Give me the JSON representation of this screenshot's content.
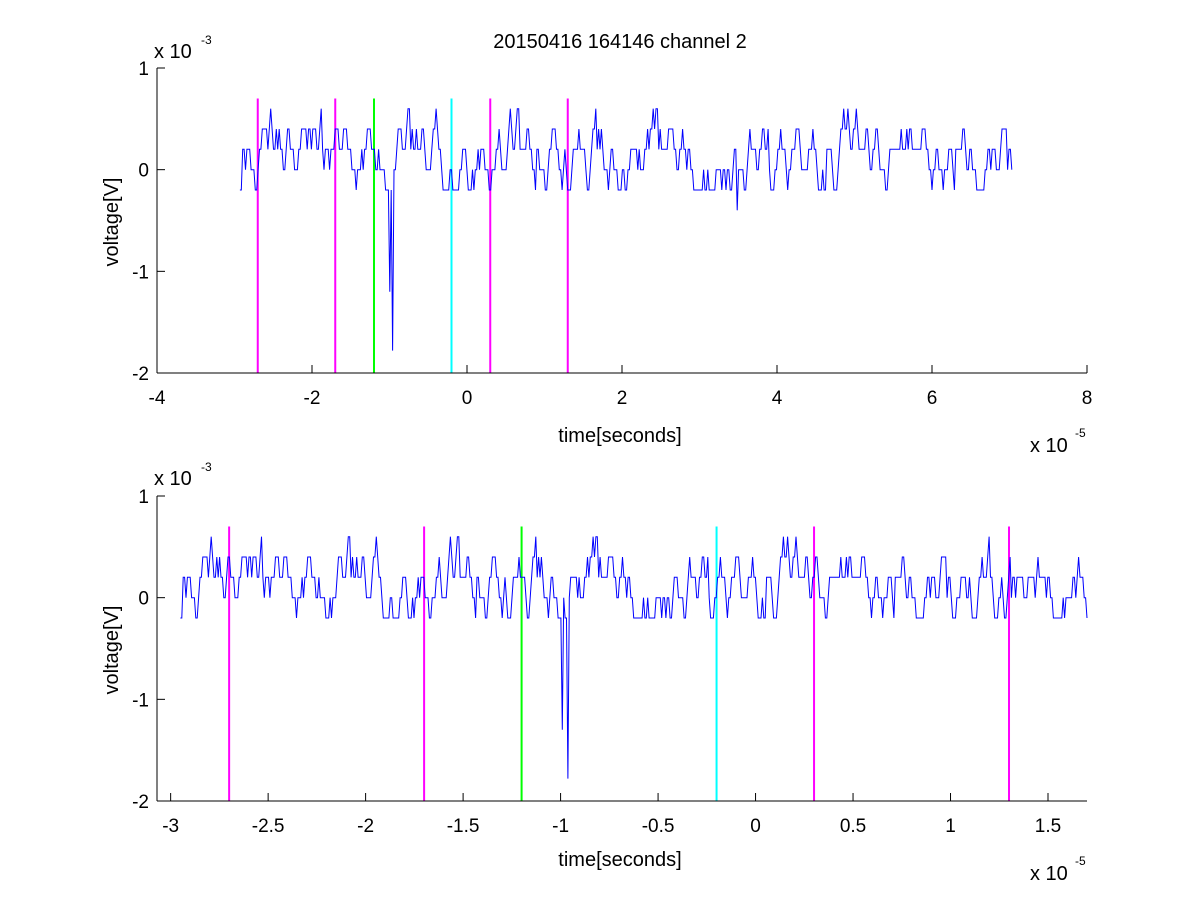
{
  "figure": {
    "title": "20150416 164146 channel 2"
  },
  "chart_data": [
    {
      "type": "line",
      "title": "20150416 164146 channel 2",
      "xlabel": "time[seconds]",
      "ylabel": "voltage[V]",
      "x_multiplier": {
        "base": "x 10",
        "exponent": "-5"
      },
      "y_multiplier": {
        "base": "x 10",
        "exponent": "-3"
      },
      "xlim": [
        -4,
        8
      ],
      "ylim": [
        -2,
        1
      ],
      "xticks": [
        -4,
        -2,
        0,
        2,
        4,
        6,
        8
      ],
      "xtick_labels": [
        "-4",
        "-2",
        "0",
        "2",
        "4",
        "6",
        "8"
      ],
      "yticks": [
        -2,
        -1,
        0,
        1
      ],
      "ytick_labels": [
        "-2",
        "-1",
        "0",
        "1"
      ],
      "grid": false,
      "trace": {
        "color": "#0000ff",
        "x_range": [
          -2.93,
          7.03
        ],
        "levels": [
          -0.2,
          0,
          0.2,
          0.4,
          0.6
        ],
        "spikes": [
          {
            "x": -0.96,
            "y": -1.78
          },
          {
            "x": -1.0,
            "y": -1.2
          },
          {
            "x": 3.48,
            "y": -0.4
          }
        ]
      },
      "markers": [
        {
          "x": -2.7,
          "color": "#ff00ff"
        },
        {
          "x": -1.7,
          "color": "#ff00ff"
        },
        {
          "x": -1.2,
          "color": "#00ff00"
        },
        {
          "x": -0.2,
          "color": "#00ffff"
        },
        {
          "x": 0.3,
          "color": "#ff00ff"
        },
        {
          "x": 1.3,
          "color": "#ff00ff"
        }
      ]
    },
    {
      "type": "line",
      "title": "",
      "xlabel": "time[seconds]",
      "ylabel": "voltage[V]",
      "x_multiplier": {
        "base": "x 10",
        "exponent": "-5"
      },
      "y_multiplier": {
        "base": "x 10",
        "exponent": "-3"
      },
      "xlim": [
        -3.07,
        1.7
      ],
      "ylim": [
        -2,
        1
      ],
      "xticks": [
        -3,
        -2.5,
        -2,
        -1.5,
        -1,
        -0.5,
        0,
        0.5,
        1,
        1.5
      ],
      "xtick_labels": [
        "-3",
        "-2.5",
        "-2",
        "-1.5",
        "-1",
        "-0.5",
        "0",
        "0.5",
        "1",
        "1.5"
      ],
      "yticks": [
        -2,
        -1,
        0,
        1
      ],
      "ytick_labels": [
        "-2",
        "-1",
        "0",
        "1"
      ],
      "grid": false,
      "trace": {
        "color": "#0000ff",
        "x_range": [
          -2.95,
          1.7
        ],
        "levels": [
          -0.2,
          0,
          0.2,
          0.4,
          0.6
        ],
        "spikes": [
          {
            "x": -0.96,
            "y": -1.78
          },
          {
            "x": -0.99,
            "y": -1.3
          }
        ]
      },
      "markers": [
        {
          "x": -2.7,
          "color": "#ff00ff"
        },
        {
          "x": -1.7,
          "color": "#ff00ff"
        },
        {
          "x": -1.2,
          "color": "#00ff00"
        },
        {
          "x": -0.2,
          "color": "#00ffff"
        },
        {
          "x": 0.3,
          "color": "#ff00ff"
        },
        {
          "x": 1.3,
          "color": "#ff00ff"
        }
      ]
    }
  ]
}
